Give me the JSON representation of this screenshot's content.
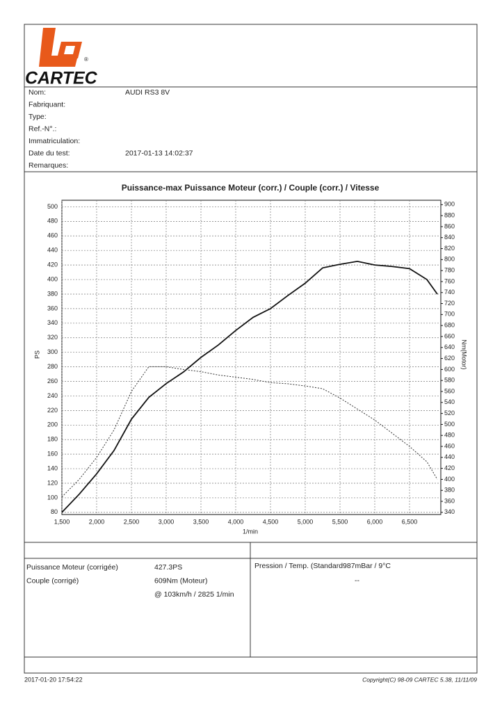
{
  "header": {
    "logo": "CARTEC",
    "registered": "®"
  },
  "fields": [
    {
      "label": "Nom:",
      "value": "AUDI RS3 8V"
    },
    {
      "label": "Fabriquant:"
    },
    {
      "label": "Type:"
    },
    {
      "label": "Ref.-N°.:"
    },
    {
      "label": "Immatriculation:"
    },
    {
      "label": "Date du test:",
      "value": "2017-01-13 14:02:37"
    },
    {
      "label": "Remarques:"
    }
  ],
  "chart_data": {
    "type": "line",
    "title": "Puissance-max Puissance Moteur (corr.) / Couple (corr.) / Vitesse",
    "x_label": "1/min",
    "y_label": "PS",
    "y2_label": "Nm(Motor)",
    "x": [
      1500,
      1750,
      2000,
      2250,
      2500,
      2750,
      3000,
      3250,
      3500,
      3750,
      4000,
      4250,
      4500,
      4750,
      5000,
      5250,
      5500,
      5750,
      6000,
      6250,
      6500,
      6750,
      6900
    ],
    "series": [
      {
        "color": "#111111",
        "style": "solid",
        "values": [
          80,
          105,
          133,
          165,
          208,
          238,
          257,
          273,
          293,
          310,
          330,
          348,
          360,
          378,
          395,
          416,
          421,
          425,
          420,
          418,
          415,
          400,
          380
        ]
      },
      {
        "color": "#333333",
        "style": "dotted",
        "axis": "y2",
        "values": [
          368,
          400,
          440,
          490,
          560,
          605,
          605,
          600,
          596,
          590,
          586,
          582,
          576,
          574,
          570,
          565,
          548,
          528,
          508,
          484,
          460,
          432,
          400
        ]
      }
    ],
    "xlim": [
      1500,
      6950
    ],
    "xticks": [
      {
        "value": 1500,
        "label": "1,500"
      },
      {
        "value": 2000,
        "label": "2,000"
      },
      {
        "value": 2500,
        "label": "2,500"
      },
      {
        "value": 3000,
        "label": "3,000"
      },
      {
        "value": 3500,
        "label": "3,500"
      },
      {
        "value": 4000,
        "label": "4,000"
      },
      {
        "value": 4500,
        "label": "4,500"
      },
      {
        "value": 5000,
        "label": "5,000"
      },
      {
        "value": 5500,
        "label": "5,500"
      },
      {
        "value": 6000,
        "label": "6,000"
      },
      {
        "value": 6500,
        "label": "6,500"
      }
    ],
    "ylim": [
      77,
      509
    ],
    "yticks": [
      80,
      100,
      120,
      140,
      160,
      180,
      200,
      220,
      240,
      260,
      280,
      300,
      320,
      340,
      360,
      380,
      400,
      420,
      440,
      460,
      480,
      500
    ],
    "y2lim": [
      336,
      908
    ],
    "y2ticks": [
      340,
      360,
      380,
      400,
      420,
      440,
      460,
      480,
      500,
      520,
      540,
      560,
      580,
      600,
      620,
      640,
      660,
      680,
      700,
      720,
      740,
      760,
      780,
      800,
      820,
      840,
      860,
      880,
      900
    ],
    "grid": true
  },
  "results": {
    "left": [
      {
        "label": "Puissance Moteur (corrigée)",
        "value": "427.3PS"
      },
      {
        "label": "Couple (corrigé)",
        "value": "609Nm (Moteur)"
      },
      {
        "value": "@ 103km/h / 2825 1/min"
      }
    ],
    "right": [
      "Pression / Temp. (Standard987mBar / 9°C",
      "--"
    ]
  },
  "footer": {
    "printed": "2017-01-20 17:54:22",
    "copyright": "Copyright(C) 98-09 CARTEC 5.38, 11/11/09"
  }
}
